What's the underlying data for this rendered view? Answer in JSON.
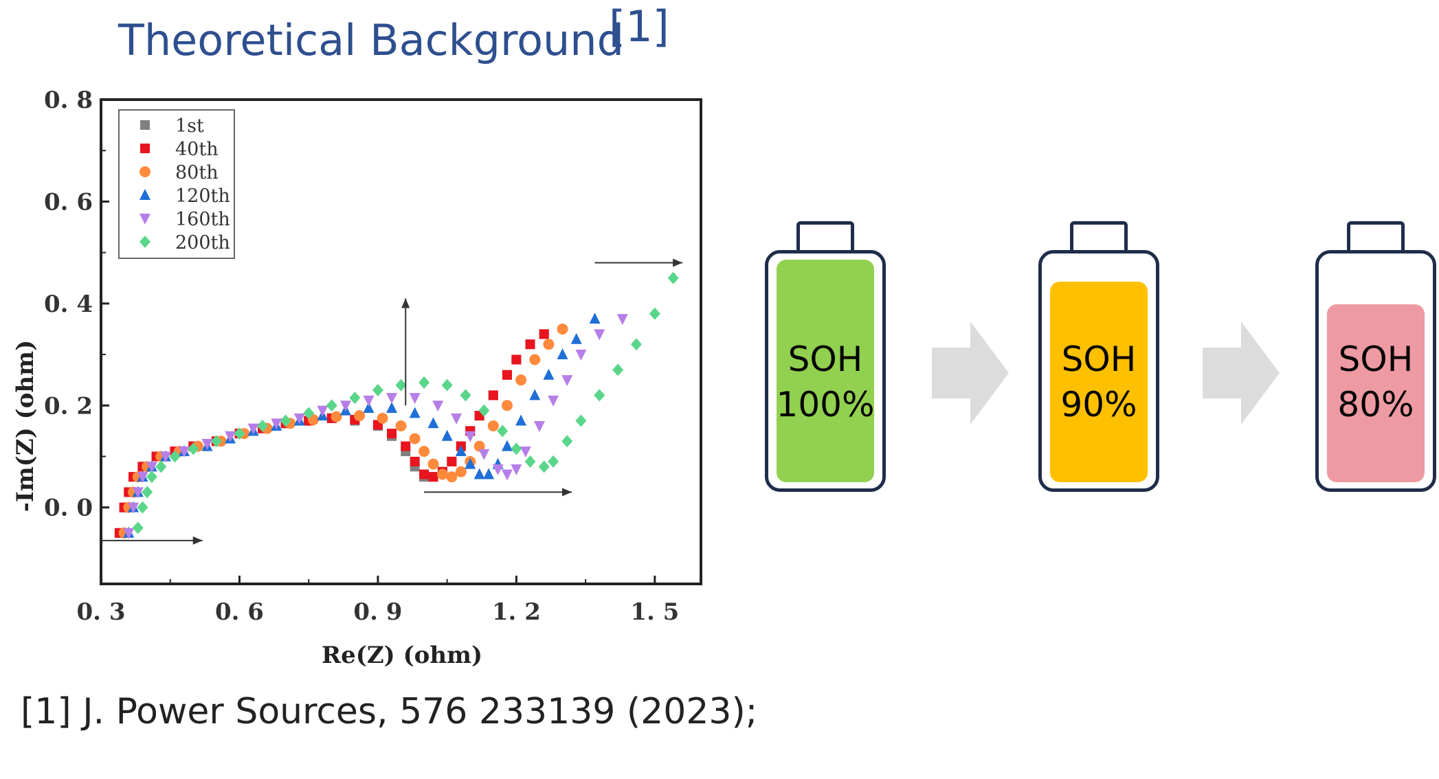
{
  "header": {
    "title": "Theoretical Background",
    "ref": "[1]"
  },
  "citation": "[1] J. Power Sources, 576 233139 (2023);",
  "chart_data": {
    "type": "scatter",
    "xlabel": "Re(Z) (ohm)",
    "ylabel": "-Im(Z) (ohm)",
    "xlim": [
      0.3,
      1.6
    ],
    "ylim": [
      -0.15,
      0.8
    ],
    "xticks": [
      "0. 3",
      "0. 6",
      "0. 9",
      "1. 2",
      "1. 5"
    ],
    "xtick_values": [
      0.3,
      0.6,
      0.9,
      1.2,
      1.5
    ],
    "yticks": [
      "0. 0",
      "0. 2",
      "0. 4",
      "0. 6",
      "0. 8"
    ],
    "ytick_values": [
      0.0,
      0.2,
      0.4,
      0.6,
      0.8
    ],
    "legend_position": "top-left",
    "series": [
      {
        "name": "1st",
        "color": "#808080",
        "marker": "square",
        "x": [
          0.34,
          0.35,
          0.36,
          0.37,
          0.39,
          0.42,
          0.46,
          0.5,
          0.55,
          0.6,
          0.65,
          0.7,
          0.75,
          0.8,
          0.85,
          0.9,
          0.93,
          0.96,
          0.98,
          1.0,
          1.02,
          1.04,
          1.06,
          1.08,
          1.1,
          1.12,
          1.15,
          1.18,
          1.2,
          1.23,
          1.26
        ],
        "y": [
          -0.05,
          0.0,
          0.03,
          0.06,
          0.08,
          0.1,
          0.11,
          0.12,
          0.13,
          0.145,
          0.155,
          0.165,
          0.17,
          0.175,
          0.17,
          0.16,
          0.14,
          0.11,
          0.08,
          0.06,
          0.06,
          0.07,
          0.09,
          0.12,
          0.15,
          0.18,
          0.22,
          0.26,
          0.29,
          0.32,
          0.34
        ]
      },
      {
        "name": "40th",
        "color": "#e8141e",
        "marker": "square",
        "x": [
          0.34,
          0.35,
          0.36,
          0.37,
          0.39,
          0.42,
          0.46,
          0.5,
          0.55,
          0.6,
          0.65,
          0.7,
          0.75,
          0.8,
          0.85,
          0.9,
          0.93,
          0.96,
          0.98,
          1.0,
          1.02,
          1.04,
          1.06,
          1.08,
          1.1,
          1.12,
          1.15,
          1.18,
          1.2,
          1.23,
          1.26
        ],
        "y": [
          -0.05,
          0.0,
          0.03,
          0.06,
          0.08,
          0.1,
          0.11,
          0.12,
          0.13,
          0.145,
          0.155,
          0.165,
          0.17,
          0.175,
          0.172,
          0.162,
          0.145,
          0.12,
          0.09,
          0.065,
          0.06,
          0.07,
          0.09,
          0.12,
          0.15,
          0.18,
          0.22,
          0.26,
          0.29,
          0.32,
          0.34
        ]
      },
      {
        "name": "80th",
        "color": "#ff8a3c",
        "marker": "circle",
        "x": [
          0.35,
          0.36,
          0.37,
          0.38,
          0.4,
          0.43,
          0.47,
          0.51,
          0.56,
          0.61,
          0.66,
          0.71,
          0.76,
          0.81,
          0.86,
          0.91,
          0.95,
          0.98,
          1.0,
          1.02,
          1.04,
          1.06,
          1.08,
          1.1,
          1.12,
          1.15,
          1.18,
          1.21,
          1.24,
          1.27,
          1.3
        ],
        "y": [
          -0.05,
          0.0,
          0.03,
          0.06,
          0.08,
          0.1,
          0.11,
          0.12,
          0.13,
          0.145,
          0.155,
          0.165,
          0.172,
          0.178,
          0.18,
          0.175,
          0.16,
          0.135,
          0.11,
          0.085,
          0.065,
          0.06,
          0.07,
          0.09,
          0.12,
          0.16,
          0.2,
          0.25,
          0.29,
          0.32,
          0.35
        ]
      },
      {
        "name": "120th",
        "color": "#1f6fd6",
        "marker": "triangle-up",
        "x": [
          0.36,
          0.37,
          0.38,
          0.39,
          0.41,
          0.44,
          0.48,
          0.53,
          0.58,
          0.63,
          0.68,
          0.73,
          0.78,
          0.83,
          0.88,
          0.93,
          0.98,
          1.02,
          1.05,
          1.08,
          1.1,
          1.12,
          1.14,
          1.16,
          1.18,
          1.21,
          1.24,
          1.27,
          1.3,
          1.33,
          1.37
        ],
        "y": [
          -0.05,
          0.0,
          0.03,
          0.06,
          0.08,
          0.1,
          0.11,
          0.12,
          0.135,
          0.15,
          0.16,
          0.17,
          0.18,
          0.19,
          0.195,
          0.195,
          0.185,
          0.165,
          0.14,
          0.11,
          0.085,
          0.065,
          0.065,
          0.085,
          0.12,
          0.17,
          0.22,
          0.26,
          0.3,
          0.33,
          0.37
        ]
      },
      {
        "name": "160th",
        "color": "#b67ee8",
        "marker": "triangle-down",
        "x": [
          0.36,
          0.37,
          0.38,
          0.39,
          0.41,
          0.44,
          0.48,
          0.53,
          0.58,
          0.63,
          0.68,
          0.73,
          0.78,
          0.83,
          0.88,
          0.93,
          0.98,
          1.03,
          1.07,
          1.1,
          1.13,
          1.16,
          1.18,
          1.2,
          1.22,
          1.25,
          1.28,
          1.31,
          1.34,
          1.38,
          1.43
        ],
        "y": [
          -0.05,
          0.0,
          0.03,
          0.06,
          0.08,
          0.1,
          0.11,
          0.125,
          0.14,
          0.155,
          0.165,
          0.175,
          0.19,
          0.2,
          0.21,
          0.215,
          0.215,
          0.2,
          0.175,
          0.14,
          0.105,
          0.075,
          0.065,
          0.075,
          0.11,
          0.16,
          0.21,
          0.25,
          0.3,
          0.34,
          0.37
        ]
      },
      {
        "name": "200th",
        "color": "#5ad68a",
        "marker": "diamond",
        "x": [
          0.38,
          0.39,
          0.4,
          0.41,
          0.43,
          0.46,
          0.5,
          0.55,
          0.6,
          0.65,
          0.7,
          0.75,
          0.8,
          0.85,
          0.9,
          0.95,
          1.0,
          1.05,
          1.09,
          1.13,
          1.17,
          1.2,
          1.23,
          1.26,
          1.28,
          1.31,
          1.34,
          1.38,
          1.42,
          1.46,
          1.5,
          1.54
        ],
        "y": [
          -0.04,
          0.0,
          0.03,
          0.06,
          0.08,
          0.1,
          0.115,
          0.13,
          0.145,
          0.16,
          0.17,
          0.185,
          0.2,
          0.215,
          0.23,
          0.24,
          0.245,
          0.24,
          0.22,
          0.19,
          0.15,
          0.115,
          0.09,
          0.08,
          0.09,
          0.13,
          0.17,
          0.22,
          0.27,
          0.32,
          0.38,
          0.45
        ]
      }
    ]
  },
  "batteries": [
    {
      "line1": "SOH",
      "line2": "100%",
      "fill_color": "#92d050",
      "level": 1.0
    },
    {
      "line1": "SOH",
      "line2": "90%",
      "fill_color": "#ffc000",
      "level": 0.9
    },
    {
      "line1": "SOH",
      "line2": "80%",
      "fill_color": "#ee9aa2",
      "level": 0.8
    }
  ],
  "colors": {
    "title": "#2e4f8f",
    "battery_outline": "#1f2d4a",
    "arrow": "#dcdcdc"
  }
}
